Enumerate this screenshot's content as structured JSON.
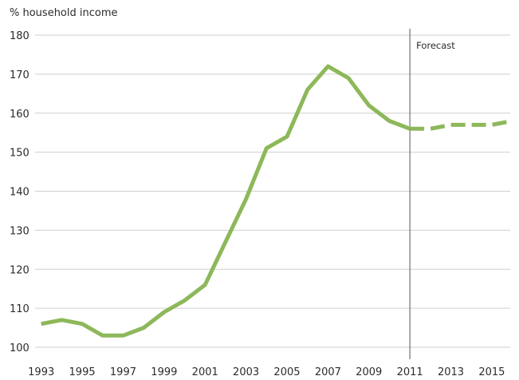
{
  "chart_data": {
    "type": "line",
    "ylabel": "% household income",
    "ylim": [
      100,
      180
    ],
    "yticks": [
      100,
      110,
      120,
      130,
      140,
      150,
      160,
      170,
      180
    ],
    "xlim": [
      1992.7,
      2015.9
    ],
    "xticks": [
      1993,
      1995,
      1997,
      1999,
      2001,
      2003,
      2005,
      2007,
      2009,
      2011,
      2013,
      2015
    ],
    "grid": "horizontal",
    "forecast_start": 2011,
    "forecast_label": "Forecast",
    "line_color": "#8DB85A",
    "series": [
      {
        "style": "solid",
        "x": [
          1993,
          1994,
          1995,
          1996,
          1997,
          1998,
          1999,
          2000,
          2001,
          2002,
          2003,
          2004,
          2005,
          2006,
          2007,
          2008,
          2009,
          2010,
          2011
        ],
        "y": [
          106,
          107,
          106,
          103,
          103,
          105,
          109,
          112,
          116,
          127,
          138,
          151,
          154,
          166,
          172,
          169,
          162,
          158,
          156
        ]
      },
      {
        "style": "dashed",
        "x": [
          2011,
          2012,
          2013,
          2014,
          2015,
          2016
        ],
        "y": [
          156,
          156,
          157,
          157,
          157,
          158
        ]
      }
    ]
  }
}
